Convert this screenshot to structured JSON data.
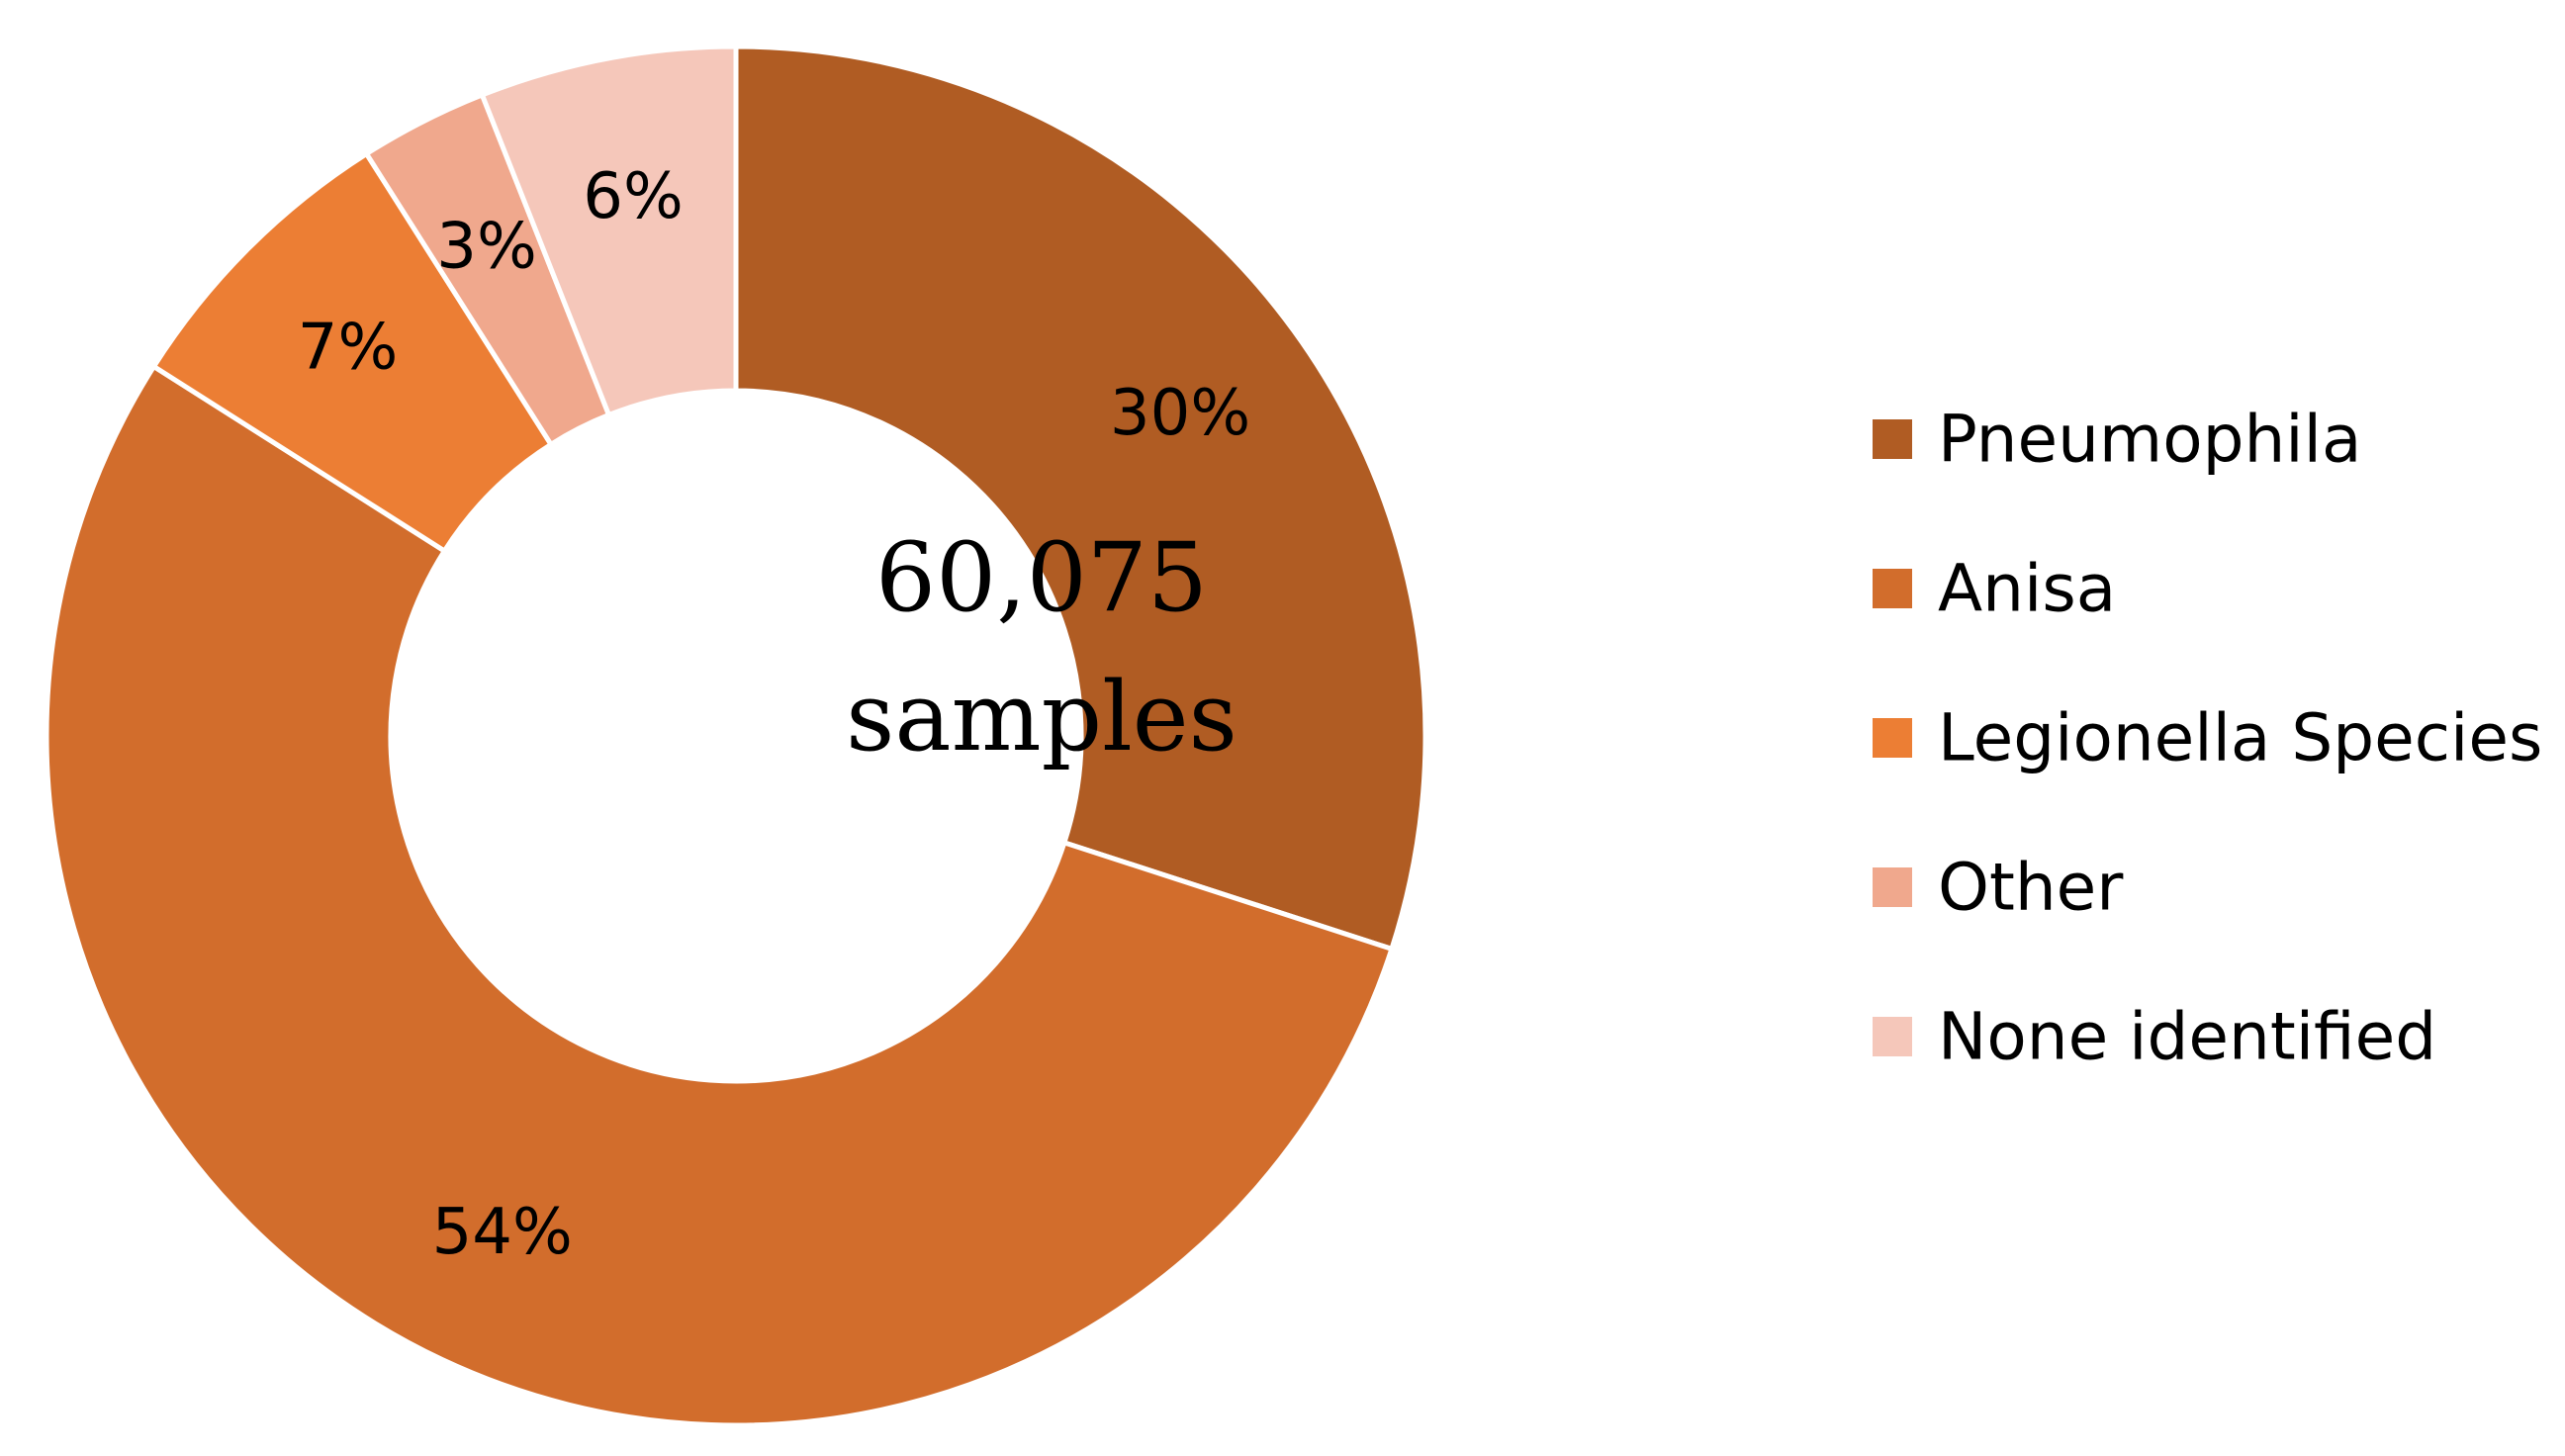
{
  "chart_data": {
    "type": "pie",
    "donut": true,
    "center_label": [
      "60,075",
      "samples"
    ],
    "slices": [
      {
        "name": "Pneumophila",
        "value": 30,
        "label": "30%",
        "color": "#B05C23"
      },
      {
        "name": "Anisa",
        "value": 54,
        "label": "54%",
        "color": "#D26D2C"
      },
      {
        "name": "Legionella Species",
        "value": 7,
        "label": "7%",
        "color": "#EC7E34"
      },
      {
        "name": "Other",
        "value": 3,
        "label": "3%",
        "color": "#F0A88D"
      },
      {
        "name": "None identified",
        "value": 6,
        "label": "6%",
        "color": "#F5C7BA"
      }
    ],
    "legend_position": "right"
  }
}
